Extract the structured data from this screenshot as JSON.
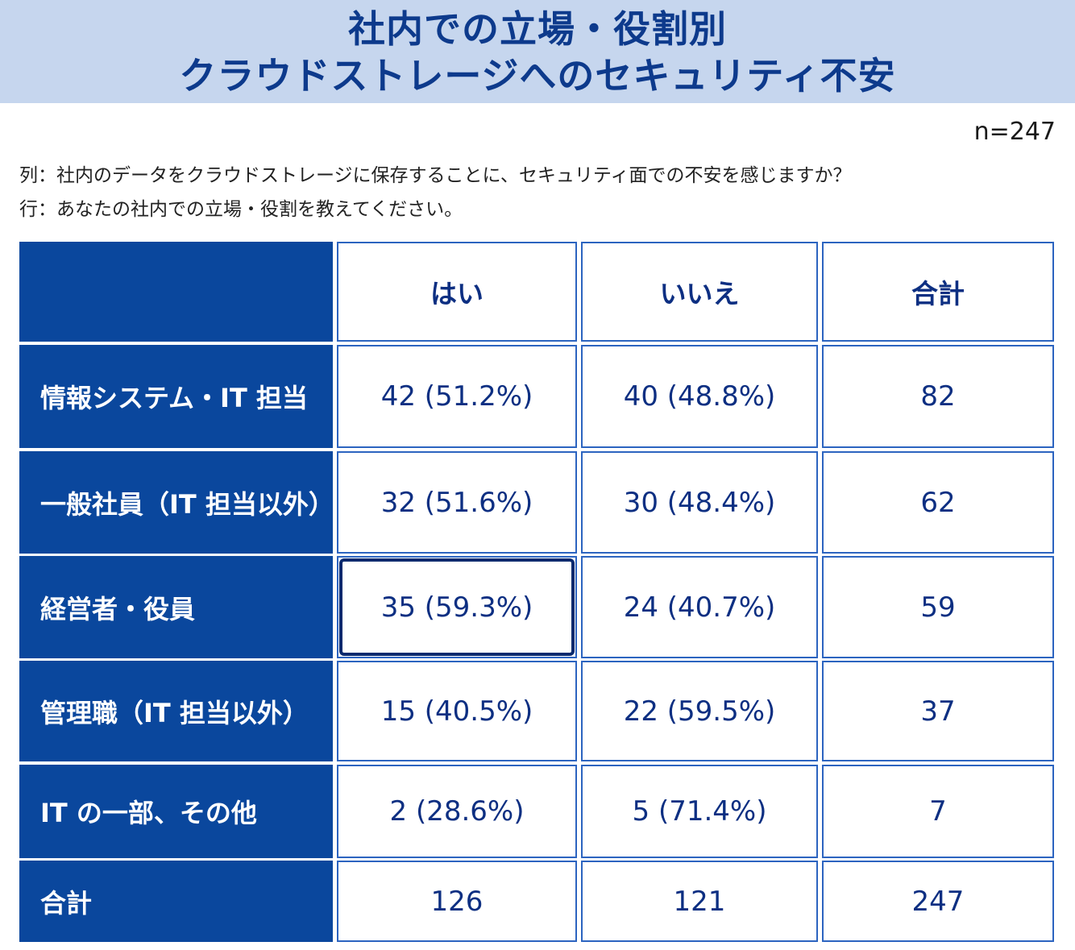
{
  "title": {
    "line1": "社内での立場・役割別",
    "line2": "クラウドストレージへのセキュリティ不安"
  },
  "sample_size": "n=247",
  "questions": {
    "columns": "列：社内のデータをクラウドストレージに保存することに、セキュリティ面での不安を感じますか？",
    "rows": "行：あなたの社内での立場・役割を教えてください。"
  },
  "colors": {
    "title_band": "#c6d6ee",
    "title_text": "#0d3a8c",
    "row_header_bg": "#0a479d",
    "cell_border": "#2c64c0",
    "cell_text": "#0d2f82",
    "highlight_border": "#0a2a6e"
  },
  "chart_data": {
    "type": "table",
    "title": "社内での立場・役割別 クラウドストレージへのセキュリティ不安",
    "columns": [
      "はい",
      "いいえ",
      "合計"
    ],
    "rows": [
      {
        "label": "情報システム・IT 担当",
        "cells": [
          "42 (51.2%)",
          "40 (48.8%)",
          "82"
        ],
        "yes": 42,
        "yes_pct": 51.2,
        "no": 40,
        "no_pct": 48.8,
        "total": 82
      },
      {
        "label": "一般社員（IT 担当以外）",
        "cells": [
          "32 (51.6%)",
          "30 (48.4%)",
          "62"
        ],
        "yes": 32,
        "yes_pct": 51.6,
        "no": 30,
        "no_pct": 48.4,
        "total": 62
      },
      {
        "label": "経営者・役員",
        "cells": [
          "35 (59.3%)",
          "24 (40.7%)",
          "59"
        ],
        "yes": 35,
        "yes_pct": 59.3,
        "no": 24,
        "no_pct": 40.7,
        "total": 59,
        "highlighted": "はい"
      },
      {
        "label": "管理職（IT 担当以外）",
        "cells": [
          "15 (40.5%)",
          "22 (59.5%)",
          "37"
        ],
        "yes": 15,
        "yes_pct": 40.5,
        "no": 22,
        "no_pct": 59.5,
        "total": 37
      },
      {
        "label": "IT の一部、その他",
        "cells": [
          "2 (28.6%)",
          "5 (71.4%)",
          "7"
        ],
        "yes": 2,
        "yes_pct": 28.6,
        "no": 5,
        "no_pct": 71.4,
        "total": 7
      },
      {
        "label": "合計",
        "cells": [
          "126",
          "121",
          "247"
        ],
        "yes": 126,
        "no": 121,
        "total": 247
      }
    ]
  }
}
